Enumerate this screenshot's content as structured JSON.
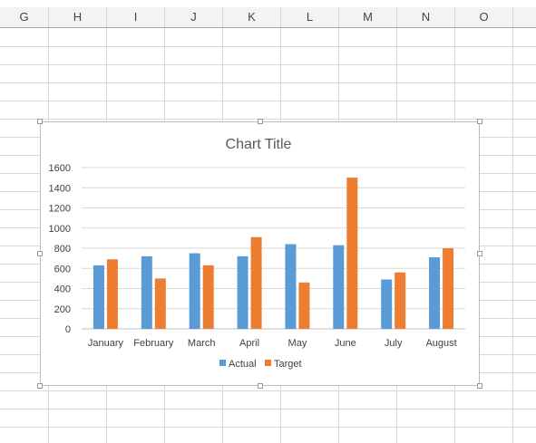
{
  "spreadsheet": {
    "columns": [
      "G",
      "H",
      "I",
      "J",
      "K",
      "L",
      "M",
      "N",
      "O"
    ]
  },
  "chart_data": {
    "type": "bar",
    "title": "Chart Title",
    "categories": [
      "January",
      "February",
      "March",
      "April",
      "May",
      "June",
      "July",
      "August"
    ],
    "series": [
      {
        "name": "Actual",
        "color": "#5b9bd5",
        "values": [
          630,
          720,
          750,
          720,
          840,
          830,
          490,
          710
        ]
      },
      {
        "name": "Target",
        "color": "#ed7d31",
        "values": [
          690,
          500,
          630,
          910,
          460,
          1500,
          560,
          800
        ]
      }
    ],
    "ylim": [
      0,
      1600
    ],
    "yticks": [
      0,
      200,
      400,
      600,
      800,
      1000,
      1200,
      1400,
      1600
    ],
    "grid": true,
    "legend_position": "bottom",
    "xlabel": "",
    "ylabel": ""
  }
}
